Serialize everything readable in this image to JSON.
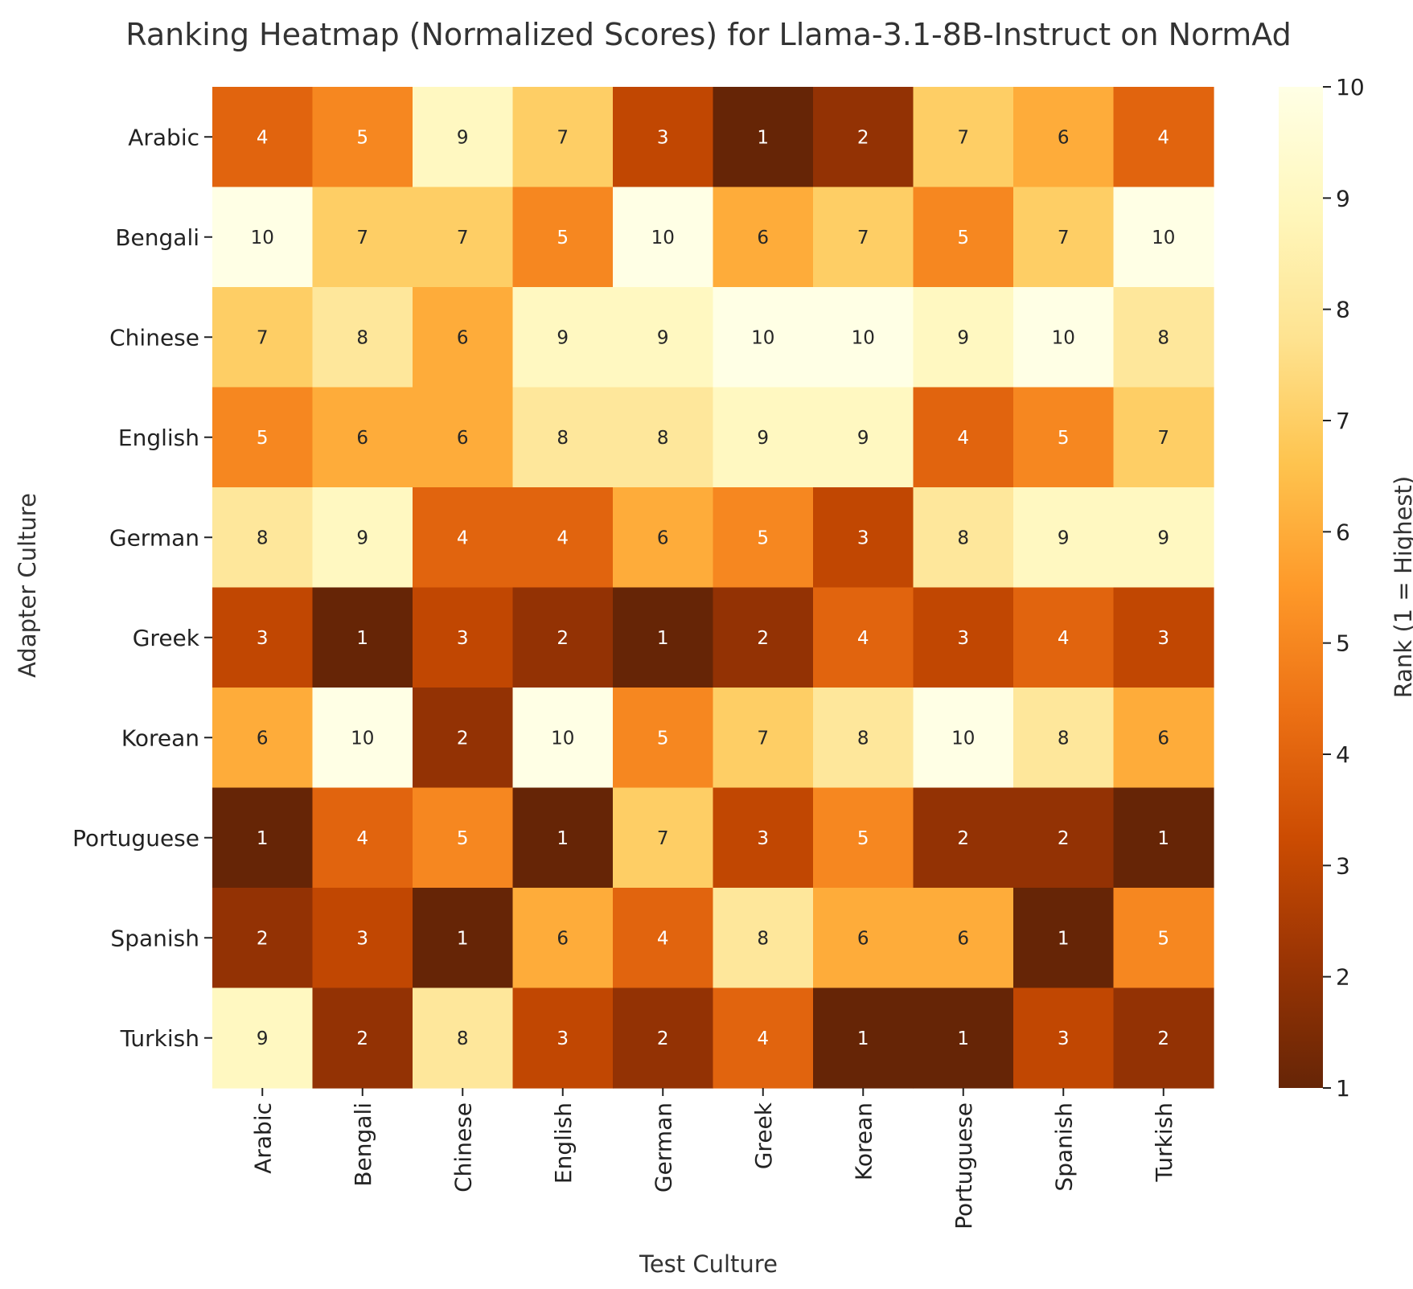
{
  "chart_data": {
    "type": "heatmap",
    "title": "Ranking Heatmap (Normalized Scores) for Llama-3.1-8B-Instruct on NormAd",
    "xlabel": "Test Culture",
    "ylabel": "Adapter Culture",
    "x_categories": [
      "Arabic",
      "Bengali",
      "Chinese",
      "English",
      "German",
      "Greek",
      "Korean",
      "Portuguese",
      "Spanish",
      "Turkish"
    ],
    "y_categories": [
      "Arabic",
      "Bengali",
      "Chinese",
      "English",
      "German",
      "Greek",
      "Korean",
      "Portuguese",
      "Spanish",
      "Turkish"
    ],
    "values": [
      [
        4,
        5,
        9,
        7,
        3,
        1,
        2,
        7,
        6,
        4
      ],
      [
        10,
        7,
        7,
        5,
        10,
        6,
        7,
        5,
        7,
        10
      ],
      [
        7,
        8,
        6,
        9,
        9,
        10,
        10,
        9,
        10,
        8
      ],
      [
        5,
        6,
        6,
        8,
        8,
        9,
        9,
        4,
        5,
        7
      ],
      [
        8,
        9,
        4,
        4,
        6,
        5,
        3,
        8,
        9,
        9
      ],
      [
        3,
        1,
        3,
        2,
        1,
        2,
        4,
        3,
        4,
        3
      ],
      [
        6,
        10,
        2,
        10,
        5,
        7,
        8,
        10,
        8,
        6
      ],
      [
        1,
        4,
        5,
        1,
        7,
        3,
        5,
        2,
        2,
        1
      ],
      [
        2,
        3,
        1,
        6,
        4,
        8,
        6,
        6,
        1,
        5
      ],
      [
        9,
        2,
        8,
        3,
        2,
        4,
        1,
        1,
        3,
        2
      ]
    ],
    "colorbar": {
      "label": "Rank (1 = Highest)",
      "range": [
        1,
        10
      ],
      "ticks": [
        1,
        2,
        3,
        4,
        5,
        6,
        7,
        8,
        9,
        10
      ],
      "colormap": "YlOrBr_r"
    },
    "annotations": true,
    "grid": false
  }
}
